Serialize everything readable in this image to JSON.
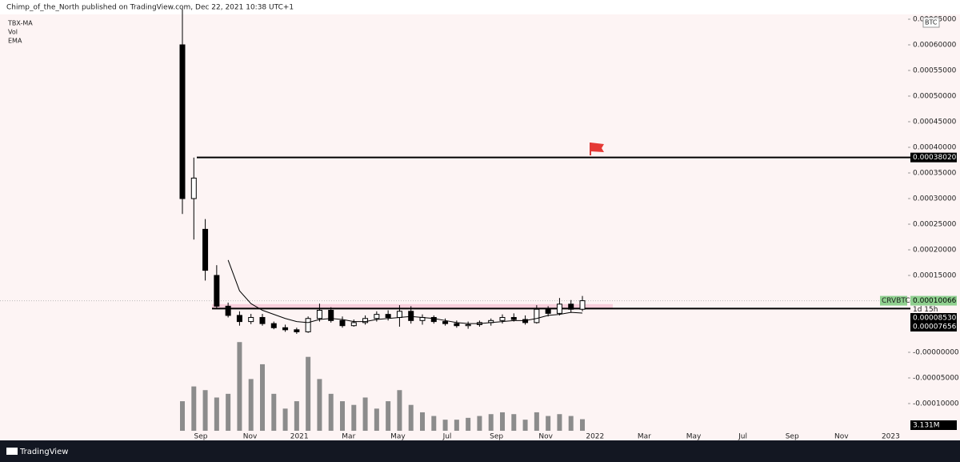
{
  "header": {
    "text": "Chimp_of_the_North published on TradingView.com, Dec 22, 2021 10:38 UTC+1"
  },
  "legend": [
    "TBX-MA",
    "Vol",
    "EMA"
  ],
  "currency": "BTC",
  "footer": {
    "brand": "TradingView"
  },
  "chart_data": {
    "type": "candlestick",
    "ylim": [
      -0.00015,
      0.00068
    ],
    "yticks": [
      {
        "value": 0.00065,
        "label": "0.00065000"
      },
      {
        "value": 0.0006,
        "label": "0.00060000"
      },
      {
        "value": 0.00055,
        "label": "0.00055000"
      },
      {
        "value": 0.0005,
        "label": "0.00050000"
      },
      {
        "value": 0.00045,
        "label": "0.00045000"
      },
      {
        "value": 0.0004,
        "label": "0.00040000"
      },
      {
        "value": 0.00035,
        "label": "0.00035000"
      },
      {
        "value": 0.0003,
        "label": "0.00030000"
      },
      {
        "value": 0.00025,
        "label": "0.00025000"
      },
      {
        "value": 0.0002,
        "label": "0.00020000"
      },
      {
        "value": 0.00015,
        "label": "0.00015000"
      },
      {
        "value": 0,
        "label": "-0.00000000"
      },
      {
        "value": -5e-05,
        "label": "-0.00005000"
      },
      {
        "value": -0.0001,
        "label": "-0.00010000"
      }
    ],
    "xticks": [
      "Sep",
      "Nov",
      "2021",
      "Mar",
      "May",
      "Jul",
      "Sep",
      "Nov",
      "2022",
      "Mar",
      "May",
      "Jul",
      "Sep",
      "Nov",
      "2023"
    ],
    "ohlc": [
      [
        0.0006,
        0.00067,
        0.00027,
        0.0003
      ],
      [
        0.0003,
        0.00038,
        0.00022,
        0.00034
      ],
      [
        0.00024,
        0.00026,
        0.00014,
        0.00016
      ],
      [
        0.00015,
        0.00017,
        8.5e-05,
        9e-05
      ],
      [
        9e-05,
        9.7e-05,
        6.8e-05,
        7.2e-05
      ],
      [
        7.2e-05,
        8e-05,
        5.2e-05,
        6e-05
      ],
      [
        6e-05,
        7.5e-05,
        5.5e-05,
        6.8e-05
      ],
      [
        6.8e-05,
        7.5e-05,
        5.2e-05,
        5.6e-05
      ],
      [
        5.6e-05,
        6e-05,
        4.5e-05,
        4.8e-05
      ],
      [
        4.8e-05,
        5.4e-05,
        4e-05,
        4.4e-05
      ],
      [
        4.4e-05,
        4.8e-05,
        3.6e-05,
        4e-05
      ],
      [
        4e-05,
        7e-05,
        3.8e-05,
        6.6e-05
      ],
      [
        6.6e-05,
        9.5e-05,
        6e-05,
        8.2e-05
      ],
      [
        8.2e-05,
        8.8e-05,
        5.8e-05,
        6.2e-05
      ],
      [
        6.2e-05,
        7e-05,
        4.8e-05,
        5.2e-05
      ],
      [
        5.2e-05,
        6.4e-05,
        5e-05,
        5.8e-05
      ],
      [
        5.8e-05,
        7.2e-05,
        5.4e-05,
        6.6e-05
      ],
      [
        6.6e-05,
        8e-05,
        6e-05,
        7.4e-05
      ],
      [
        7.4e-05,
        8.2e-05,
        6.2e-05,
        6.8e-05
      ],
      [
        6.8e-05,
        9.2e-05,
        5e-05,
        8e-05
      ],
      [
        8e-05,
        9e-05,
        5.6e-05,
        6.2e-05
      ],
      [
        6.2e-05,
        7.4e-05,
        5.4e-05,
        6.8e-05
      ],
      [
        6.8e-05,
        7.2e-05,
        5.6e-05,
        6e-05
      ],
      [
        6e-05,
        6.6e-05,
        5.2e-05,
        5.6e-05
      ],
      [
        5.6e-05,
        6.2e-05,
        4.8e-05,
        5.2e-05
      ],
      [
        5.2e-05,
        6e-05,
        4.6e-05,
        5.4e-05
      ],
      [
        5.4e-05,
        6.2e-05,
        5e-05,
        5.8e-05
      ],
      [
        5.8e-05,
        6.6e-05,
        5.2e-05,
        6.2e-05
      ],
      [
        6.2e-05,
        7.4e-05,
        5.6e-05,
        6.8e-05
      ],
      [
        6.8e-05,
        7.6e-05,
        6e-05,
        6.4e-05
      ],
      [
        6.4e-05,
        7.2e-05,
        5.4e-05,
        5.8e-05
      ],
      [
        5.8e-05,
        9.2e-05,
        5.6e-05,
        8.4e-05
      ],
      [
        8.4e-05,
        9e-05,
        7e-05,
        7.6e-05
      ],
      [
        7.6e-05,
        0.000106,
        7.2e-05,
        9.4e-05
      ],
      [
        9.4e-05,
        0.000102,
        7.8e-05,
        8.4e-05
      ],
      [
        8.4e-05,
        0.00011,
        8e-05,
        0.00010066
      ]
    ],
    "up_color": "#ffffff",
    "down_color": "#000000",
    "ema": {
      "color": "#000000",
      "values": [
        null,
        null,
        null,
        null,
        0.00018,
        0.00012,
        9.5e-05,
        8.2e-05,
        7.4e-05,
        6.6e-05,
        6e-05,
        5.8e-05,
        6.4e-05,
        6.6e-05,
        6.4e-05,
        6e-05,
        6e-05,
        6.4e-05,
        6.6e-05,
        6.8e-05,
        7e-05,
        6.8e-05,
        6.6e-05,
        6.2e-05,
        5.8e-05,
        5.6e-05,
        5.6e-05,
        5.8e-05,
        6e-05,
        6.2e-05,
        6.2e-05,
        6.6e-05,
        7.2e-05,
        7.4e-05,
        7.8e-05,
        7.656e-05
      ]
    },
    "volume": {
      "color": "#8c8c8c",
      "vlim": [
        0,
        26000000
      ],
      "values": [
        8000000,
        12000000,
        11000000,
        9000000,
        10000000,
        24000000,
        14000000,
        18000000,
        10000000,
        6000000,
        8000000,
        20000000,
        14000000,
        10000000,
        8000000,
        7000000,
        9000000,
        6000000,
        8000000,
        11000000,
        7000000,
        5000000,
        4000000,
        3000000,
        3000000,
        3500000,
        4000000,
        4500000,
        5000000,
        4500000,
        3000000,
        5000000,
        4000000,
        4500000,
        4000000,
        3131000
      ],
      "last_label": "3.131M"
    },
    "zone": {
      "values": [
        8.53e-05,
        9.4e-05
      ],
      "color": "#f7c6d6"
    },
    "levels": [
      {
        "value": 0.0003802,
        "label": "0.00038020"
      },
      {
        "value": 8.53e-05,
        "label": "0.00008530"
      }
    ],
    "ema_label": {
      "value": 7.656e-05,
      "label": "0.00007656"
    },
    "last_price": {
      "symbol": "CRVBTC",
      "value": 0.00010066,
      "label": "0.00010066",
      "countdown": "1d 15h",
      "color": "#8fd08f"
    }
  }
}
